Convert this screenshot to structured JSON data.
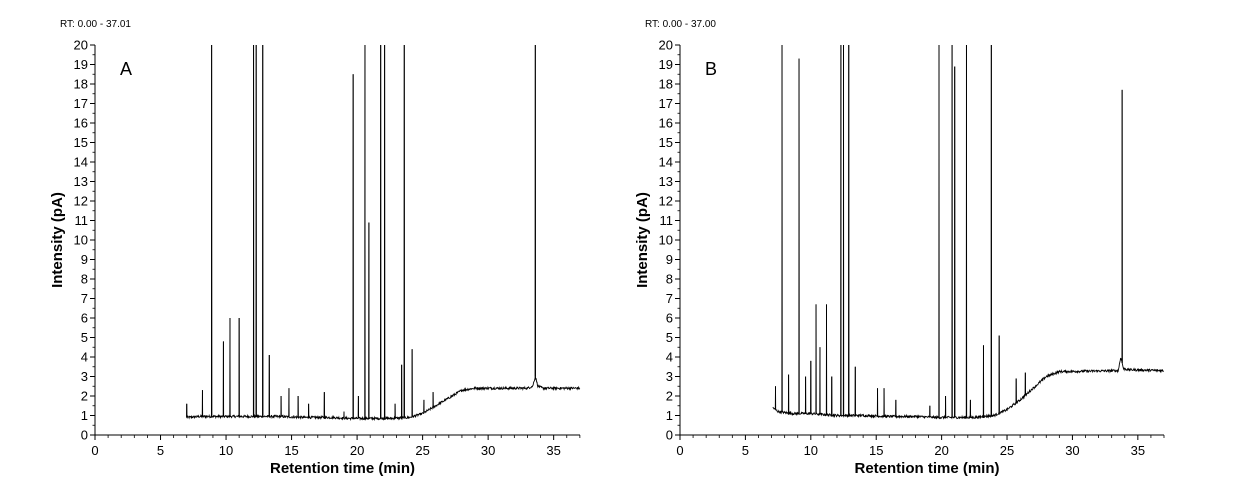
{
  "chart_data": [
    {
      "type": "line",
      "panel_label": "A",
      "rt_label": "RT: 0.00 - 37.01",
      "xlabel": "Retention time (min)",
      "ylabel": "Intensity (pA)",
      "xlim": [
        0,
        37.01
      ],
      "ylim": [
        0,
        20
      ],
      "x_ticks": [
        0,
        5,
        10,
        15,
        20,
        25,
        30,
        35
      ],
      "y_ticks": [
        0,
        1,
        2,
        3,
        4,
        5,
        6,
        7,
        8,
        9,
        10,
        11,
        12,
        13,
        14,
        15,
        16,
        17,
        18,
        19,
        20
      ],
      "baseline": [
        [
          7.0,
          0.9
        ],
        [
          8.0,
          0.95
        ],
        [
          10.0,
          0.95
        ],
        [
          12.0,
          0.95
        ],
        [
          14.0,
          0.95
        ],
        [
          16.0,
          0.9
        ],
        [
          18.0,
          0.9
        ],
        [
          19.5,
          0.85
        ],
        [
          21.0,
          0.85
        ],
        [
          22.5,
          0.85
        ],
        [
          24.0,
          0.9
        ],
        [
          25.0,
          1.1
        ],
        [
          26.0,
          1.5
        ],
        [
          27.0,
          1.9
        ],
        [
          28.0,
          2.3
        ],
        [
          29.0,
          2.4
        ],
        [
          33.0,
          2.4
        ],
        [
          33.4,
          2.5
        ],
        [
          33.6,
          3.0
        ],
        [
          33.8,
          2.5
        ],
        [
          34.2,
          2.4
        ],
        [
          37.0,
          2.4
        ]
      ],
      "peaks": [
        {
          "x": 7.0,
          "y": 1.6
        },
        {
          "x": 8.2,
          "y": 2.3
        },
        {
          "x": 8.9,
          "y": 20
        },
        {
          "x": 9.8,
          "y": 4.8
        },
        {
          "x": 10.3,
          "y": 6.0
        },
        {
          "x": 11.0,
          "y": 6.0
        },
        {
          "x": 12.1,
          "y": 20
        },
        {
          "x": 12.3,
          "y": 20
        },
        {
          "x": 12.8,
          "y": 20
        },
        {
          "x": 13.3,
          "y": 4.1
        },
        {
          "x": 14.2,
          "y": 2.0
        },
        {
          "x": 14.8,
          "y": 2.4
        },
        {
          "x": 15.5,
          "y": 2.0
        },
        {
          "x": 16.3,
          "y": 1.6
        },
        {
          "x": 17.5,
          "y": 2.2
        },
        {
          "x": 19.0,
          "y": 1.2
        },
        {
          "x": 19.7,
          "y": 18.5
        },
        {
          "x": 20.1,
          "y": 2.0
        },
        {
          "x": 20.6,
          "y": 20
        },
        {
          "x": 20.9,
          "y": 10.9
        },
        {
          "x": 21.8,
          "y": 20
        },
        {
          "x": 22.1,
          "y": 20
        },
        {
          "x": 22.9,
          "y": 1.6
        },
        {
          "x": 23.4,
          "y": 3.6
        },
        {
          "x": 23.6,
          "y": 20
        },
        {
          "x": 24.2,
          "y": 4.4
        },
        {
          "x": 25.1,
          "y": 1.8
        },
        {
          "x": 25.8,
          "y": 2.2
        },
        {
          "x": 33.6,
          "y": 20
        }
      ]
    },
    {
      "type": "line",
      "panel_label": "B",
      "rt_label": "RT: 0.00 - 37.00",
      "xlabel": "Retention time (min)",
      "ylabel": "Intensity (pA)",
      "xlim": [
        0,
        37.0
      ],
      "ylim": [
        0,
        20
      ],
      "x_ticks": [
        0,
        5,
        10,
        15,
        20,
        25,
        30,
        35
      ],
      "y_ticks": [
        0,
        1,
        2,
        3,
        4,
        5,
        6,
        7,
        8,
        9,
        10,
        11,
        12,
        13,
        14,
        15,
        16,
        17,
        18,
        19,
        20
      ],
      "baseline": [
        [
          7.1,
          1.4
        ],
        [
          7.5,
          1.2
        ],
        [
          8.5,
          1.1
        ],
        [
          10.0,
          1.1
        ],
        [
          12.0,
          1.0
        ],
        [
          14.0,
          1.0
        ],
        [
          16.0,
          0.95
        ],
        [
          18.0,
          0.95
        ],
        [
          19.5,
          0.9
        ],
        [
          21.0,
          0.9
        ],
        [
          22.5,
          0.9
        ],
        [
          24.0,
          1.0
        ],
        [
          25.0,
          1.3
        ],
        [
          26.0,
          1.8
        ],
        [
          27.0,
          2.4
        ],
        [
          28.0,
          3.0
        ],
        [
          29.0,
          3.25
        ],
        [
          33.5,
          3.3
        ],
        [
          33.7,
          4.0
        ],
        [
          33.9,
          3.4
        ],
        [
          34.3,
          3.35
        ],
        [
          37.0,
          3.3
        ]
      ],
      "peaks": [
        {
          "x": 7.3,
          "y": 2.5
        },
        {
          "x": 7.8,
          "y": 20
        },
        {
          "x": 8.3,
          "y": 3.1
        },
        {
          "x": 9.1,
          "y": 19.3
        },
        {
          "x": 9.6,
          "y": 3.0
        },
        {
          "x": 10.0,
          "y": 3.8
        },
        {
          "x": 10.4,
          "y": 6.7
        },
        {
          "x": 10.7,
          "y": 4.5
        },
        {
          "x": 11.2,
          "y": 6.7
        },
        {
          "x": 11.6,
          "y": 3.0
        },
        {
          "x": 12.3,
          "y": 20
        },
        {
          "x": 12.5,
          "y": 20
        },
        {
          "x": 12.9,
          "y": 20
        },
        {
          "x": 13.4,
          "y": 3.5
        },
        {
          "x": 15.1,
          "y": 2.4
        },
        {
          "x": 15.6,
          "y": 2.4
        },
        {
          "x": 16.5,
          "y": 1.8
        },
        {
          "x": 19.1,
          "y": 1.5
        },
        {
          "x": 19.8,
          "y": 20
        },
        {
          "x": 20.3,
          "y": 2.0
        },
        {
          "x": 20.8,
          "y": 20
        },
        {
          "x": 21.0,
          "y": 18.9
        },
        {
          "x": 21.9,
          "y": 20
        },
        {
          "x": 22.2,
          "y": 1.8
        },
        {
          "x": 23.2,
          "y": 4.6
        },
        {
          "x": 23.8,
          "y": 20
        },
        {
          "x": 24.4,
          "y": 5.1
        },
        {
          "x": 25.7,
          "y": 2.9
        },
        {
          "x": 26.4,
          "y": 3.2
        },
        {
          "x": 33.8,
          "y": 17.7
        }
      ]
    }
  ]
}
